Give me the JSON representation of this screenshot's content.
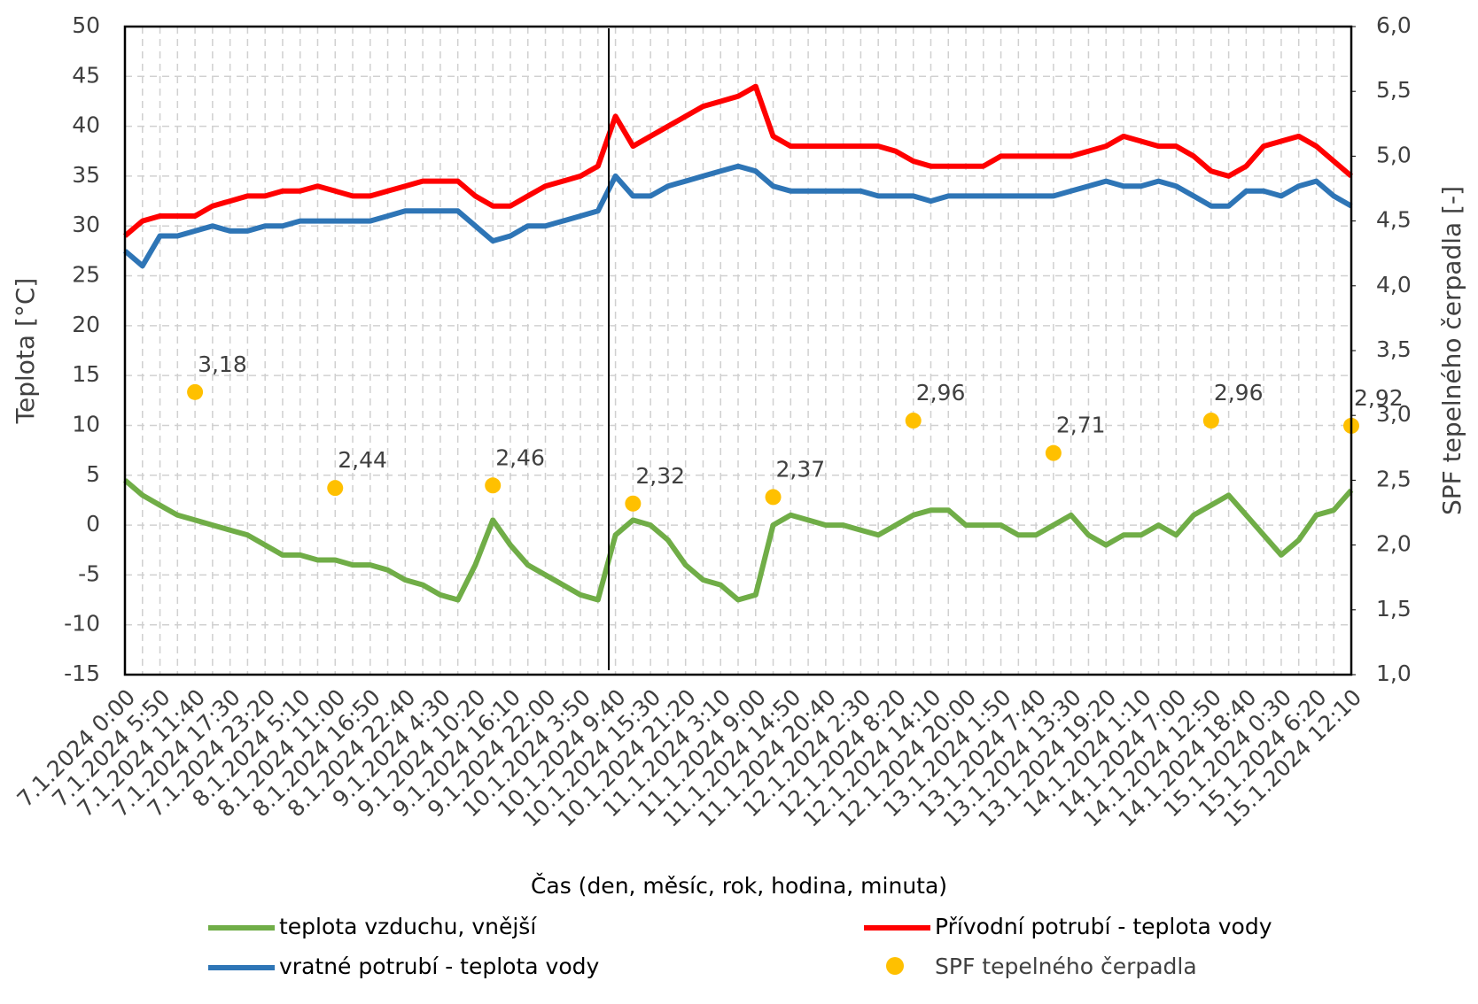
{
  "chart_data": {
    "type": "line",
    "xlabel": "Čas (den, měsíc, rok, hodina, minuta)",
    "ylabel": "Teplota [°C]",
    "y2label": "SPF tepelného čerpadla [-]",
    "categories": [
      "7.1.2024 0:00",
      null,
      "7.1.2024 5:50",
      null,
      "7.1.2024 11:40",
      null,
      "7.1.2024 17:30",
      null,
      "7.1.2024 23:20",
      null,
      "8.1.2024 5:10",
      null,
      "8.1.2024 11:00",
      null,
      "8.1.2024 16:50",
      null,
      "8.1.2024 22:40",
      null,
      "9.1.2024 4:30",
      null,
      "9.1.2024 10:20",
      null,
      "9.1.2024 16:10",
      null,
      "9.1.2024 22:00",
      null,
      "10.1.2024 3:50",
      null,
      "10.1.2024 9:40",
      null,
      "10.1.2024 15:30",
      null,
      "10.1.2024 21:20",
      null,
      "11.1.2024 3:10",
      null,
      "11.1.2024 9:00",
      null,
      "11.1.2024 14:50",
      null,
      "11.1.2024 20:40",
      null,
      "12.1.2024 2:30",
      null,
      "12.1.2024 8:20",
      null,
      "12.1.2024 14:10",
      null,
      "12.1.2024 20:00",
      null,
      "13.1.2024 1:50",
      null,
      "13.1.2024 7:40",
      null,
      "13.1.2024 13:30",
      null,
      "13.1.2024 19:20",
      null,
      "14.1.2024 1:10",
      null,
      "14.1.2024 7:00",
      null,
      "14.1.2024 12:50",
      null,
      "14.1.2024 18:40",
      null,
      "15.1.2024 0:30",
      null,
      "15.1.2024 6:20",
      null,
      "15.1.2024 12:10"
    ],
    "series": [
      {
        "name": "teplota vzduchu, vnější",
        "color": "#70ad47",
        "type": "line",
        "values": [
          4.5,
          3,
          2,
          1,
          0.5,
          0,
          -0.5,
          -1,
          -2,
          -3,
          -3,
          -3.5,
          -3.5,
          -4,
          -4,
          -4.5,
          -5.5,
          -6,
          -7,
          -7.5,
          -4,
          0.5,
          -2,
          -4,
          -5,
          -6,
          -7,
          -7.5,
          -1,
          0.5,
          0,
          -1.5,
          -4,
          -5.5,
          -6,
          -7.5,
          -7,
          0,
          1,
          0.5,
          0,
          0,
          -0.5,
          -1,
          0,
          1,
          1.5,
          1.5,
          0,
          0,
          0,
          -1,
          -1,
          0,
          1,
          -1,
          -2,
          -1,
          -1,
          0,
          -1,
          1,
          2,
          3,
          1,
          -1,
          -3,
          -1.5,
          1,
          1.5,
          3.5
        ]
      },
      {
        "name": "Přívodní potrubí - teplota vody",
        "color": "#ff0000",
        "type": "line",
        "values": [
          29,
          30.5,
          31,
          31,
          31,
          32,
          32.5,
          33,
          33,
          33.5,
          33.5,
          34,
          33.5,
          33,
          33,
          33.5,
          34,
          34.5,
          34.5,
          34.5,
          33,
          32,
          32,
          33,
          34,
          34.5,
          35,
          36,
          41,
          38,
          39,
          40,
          41,
          42,
          42.5,
          43,
          44,
          39,
          38,
          38,
          38,
          38,
          38,
          38,
          37.5,
          36.5,
          36,
          36,
          36,
          36,
          37,
          37,
          37,
          37,
          37,
          37.5,
          38,
          39,
          38.5,
          38,
          38,
          37,
          35.5,
          35,
          36,
          38,
          38.5,
          39,
          38,
          36.5,
          35
        ]
      },
      {
        "name": "vratné potrubí - teplota vody",
        "color": "#2e75b6",
        "type": "line",
        "values": [
          27.5,
          26,
          29,
          29,
          29.5,
          30,
          29.5,
          29.5,
          30,
          30,
          30.5,
          30.5,
          30.5,
          30.5,
          30.5,
          31,
          31.5,
          31.5,
          31.5,
          31.5,
          30,
          28.5,
          29,
          30,
          30,
          30.5,
          31,
          31.5,
          35,
          33,
          33,
          34,
          34.5,
          35,
          35.5,
          36,
          35.5,
          34,
          33.5,
          33.5,
          33.5,
          33.5,
          33.5,
          33,
          33,
          33,
          32.5,
          33,
          33,
          33,
          33,
          33,
          33,
          33,
          33.5,
          34,
          34.5,
          34,
          34,
          34.5,
          34,
          33,
          32,
          32,
          33.5,
          33.5,
          33,
          34,
          34.5,
          33,
          32
        ]
      },
      {
        "name": "SPF tepelného čerpadla",
        "color": "#ffc000",
        "type": "scatter",
        "axis": "y2",
        "values": [
          null,
          null,
          null,
          null,
          3.18,
          null,
          null,
          null,
          null,
          null,
          null,
          null,
          2.44,
          null,
          null,
          null,
          null,
          null,
          null,
          null,
          null,
          2.46,
          null,
          null,
          null,
          null,
          null,
          null,
          null,
          2.32,
          null,
          null,
          null,
          null,
          null,
          null,
          null,
          2.37,
          null,
          null,
          null,
          null,
          null,
          null,
          null,
          2.96,
          null,
          null,
          null,
          null,
          null,
          null,
          null,
          2.71,
          null,
          null,
          null,
          null,
          null,
          null,
          null,
          null,
          2.96,
          null,
          null,
          null,
          null,
          null,
          null,
          null,
          2.92
        ],
        "value_labels": [
          null,
          null,
          null,
          null,
          "3,18",
          null,
          null,
          null,
          null,
          null,
          null,
          null,
          "2,44",
          null,
          null,
          null,
          null,
          null,
          null,
          null,
          null,
          "2,46",
          null,
          null,
          null,
          null,
          null,
          null,
          null,
          "2,32",
          null,
          null,
          null,
          null,
          null,
          null,
          null,
          "2,37",
          null,
          null,
          null,
          null,
          null,
          null,
          null,
          "2,96",
          null,
          null,
          null,
          null,
          null,
          null,
          null,
          "2,71",
          null,
          null,
          null,
          null,
          null,
          null,
          null,
          null,
          "2,96",
          null,
          null,
          null,
          null,
          null,
          null,
          null,
          "2,92"
        ]
      }
    ],
    "ylim": [
      -15,
      50
    ],
    "yticks": [
      -15,
      -10,
      -5,
      0,
      5,
      10,
      15,
      20,
      25,
      30,
      35,
      40,
      45,
      50
    ],
    "y2lim": [
      1,
      6
    ],
    "y2ticks": [
      {
        "value": 1,
        "label": "1,0"
      },
      {
        "value": 1.5,
        "label": "1,5"
      },
      {
        "value": 2,
        "label": "2,0"
      },
      {
        "value": 2.5,
        "label": "2,5"
      },
      {
        "value": 3,
        "label": "3,0"
      },
      {
        "value": 3.5,
        "label": "3,5"
      },
      {
        "value": 4,
        "label": "4,0"
      },
      {
        "value": 4.5,
        "label": "4,5"
      },
      {
        "value": 5,
        "label": "5,0"
      },
      {
        "value": 5.5,
        "label": "5,5"
      },
      {
        "value": 6,
        "label": "6,0"
      }
    ],
    "grid": true
  }
}
